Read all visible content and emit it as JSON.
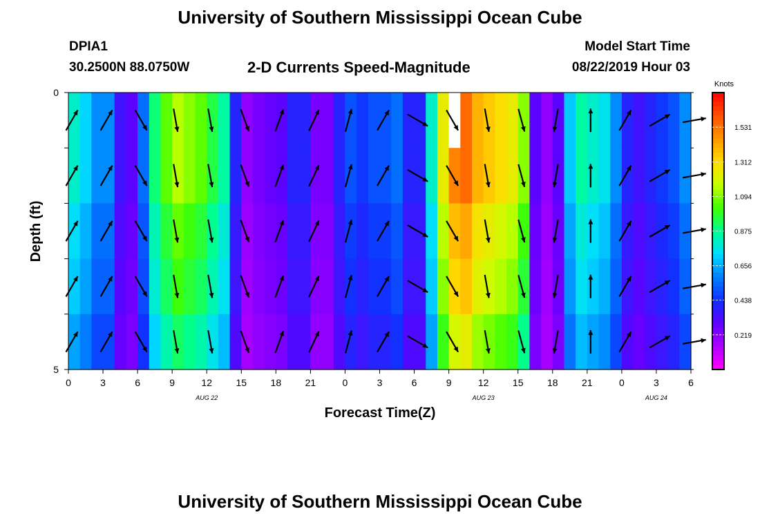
{
  "header": {
    "title": "University of Southern Mississippi Ocean Cube",
    "station": "DPIA1",
    "coords": "30.2500N 88.0750W",
    "chart_title": "2-D Currents Speed-Magnitude",
    "model_start_label": "Model Start Time",
    "model_start_value": "08/22/2019 Hour 03"
  },
  "footer": {
    "title": "University of Southern Mississippi Ocean Cube"
  },
  "colors": {
    "arrow": "#000000",
    "missing": "#ffffff",
    "scale": [
      "#ff00ff",
      "#b000ff",
      "#6000ff",
      "#1030ff",
      "#0080ff",
      "#00dcff",
      "#00ff90",
      "#40ff00",
      "#c8ff00",
      "#ffdc00",
      "#ff9600",
      "#ff5000",
      "#ff0000"
    ]
  },
  "chart_data": {
    "type": "heatmap",
    "title": "2-D Currents Speed-Magnitude",
    "xlabel": "Forecast Time(Z)",
    "ylabel": "Depth (ft)",
    "ylim": [
      0,
      5
    ],
    "ytick_labels": [
      "0",
      "5"
    ],
    "x_range_hours": [
      0,
      54
    ],
    "xtick_labels": [
      "0",
      "3",
      "6",
      "9",
      "12",
      "15",
      "18",
      "21",
      "0",
      "3",
      "6",
      "9",
      "12",
      "15",
      "18",
      "21",
      "0",
      "3",
      "6"
    ],
    "date_labels": [
      {
        "text": "AUG  22",
        "hour": 12
      },
      {
        "text": "AUG  23",
        "hour": 36
      },
      {
        "text": "AUG  24",
        "hour": 51
      }
    ],
    "colorbar": {
      "unit": "Knots",
      "ticks": [
        "0.219",
        "0.438",
        "0.656",
        "0.875",
        "1.094",
        "1.312",
        "1.531"
      ],
      "vmin": 0.0,
      "vmax": 1.75
    },
    "depth_bins": 5,
    "hours": [
      0,
      1,
      2,
      3,
      4,
      5,
      6,
      7,
      8,
      9,
      10,
      11,
      12,
      13,
      14,
      15,
      16,
      17,
      18,
      19,
      20,
      21,
      22,
      23,
      24,
      25,
      26,
      27,
      28,
      29,
      30,
      31,
      32,
      33,
      34,
      35,
      36,
      37,
      38,
      39,
      40,
      41,
      42,
      43,
      44,
      45,
      46,
      47,
      48,
      49,
      50,
      51,
      52,
      53
    ],
    "speed_profile": [
      0.8,
      0.72,
      0.6,
      0.6,
      0.35,
      0.3,
      0.55,
      0.9,
      1.05,
      1.15,
      1.1,
      1.05,
      0.95,
      0.85,
      0.4,
      0.2,
      0.25,
      0.28,
      0.3,
      0.4,
      0.4,
      0.25,
      0.25,
      0.4,
      0.5,
      0.45,
      0.5,
      0.5,
      0.55,
      0.4,
      0.4,
      0.8,
      1.25,
      1.5,
      1.55,
      1.4,
      1.35,
      1.3,
      1.25,
      1.1,
      0.3,
      0.2,
      0.3,
      0.7,
      0.85,
      0.8,
      0.75,
      0.6,
      0.4,
      0.35,
      0.4,
      0.45,
      0.5,
      0.6
    ],
    "depth_factor": [
      1.0,
      1.0,
      0.92,
      0.88,
      0.8
    ],
    "arrow_rows": [
      0.5,
      1.5,
      2.5,
      3.5,
      4.5
    ],
    "arrow_hours": [
      0,
      3,
      6,
      9,
      12,
      15,
      18,
      21,
      24,
      27,
      30,
      33,
      36,
      39,
      42,
      45,
      48,
      51,
      54
    ],
    "arrow_directions_deg": [
      30,
      30,
      150,
      170,
      170,
      160,
      20,
      25,
      15,
      30,
      120,
      150,
      170,
      165,
      190,
      0,
      30,
      60,
      80
    ],
    "missing_cells": [
      {
        "hour": 33,
        "depth_bin": 0
      }
    ]
  }
}
